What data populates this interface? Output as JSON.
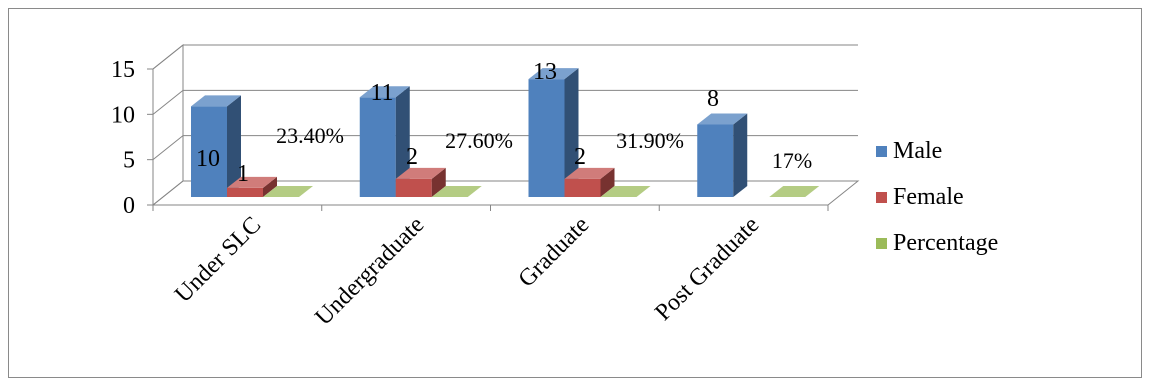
{
  "chart_data": {
    "type": "bar",
    "title": "",
    "xlabel": "",
    "ylabel": "",
    "ylim": [
      0,
      15
    ],
    "yticks": [
      0,
      5,
      10,
      15
    ],
    "grid": true,
    "legend_position": "right",
    "categories": [
      "Under SLC",
      "Undergraduate",
      "Graduate",
      "Post Graduate"
    ],
    "series": [
      {
        "name": "Male",
        "color": "#4F81BD",
        "values": [
          10,
          11,
          13,
          8
        ],
        "labels": [
          "10",
          "11",
          "13",
          "8"
        ]
      },
      {
        "name": "Female",
        "color": "#C0504D",
        "values": [
          1,
          2,
          2,
          0
        ],
        "labels": [
          "1",
          "2",
          "2",
          ""
        ]
      },
      {
        "name": "Percentage",
        "color": "#9BBB59",
        "values": [
          0.234,
          0.276,
          0.319,
          0.17
        ],
        "labels": [
          "23.40%",
          "27.60%",
          "31.90%",
          "17%"
        ]
      }
    ]
  }
}
